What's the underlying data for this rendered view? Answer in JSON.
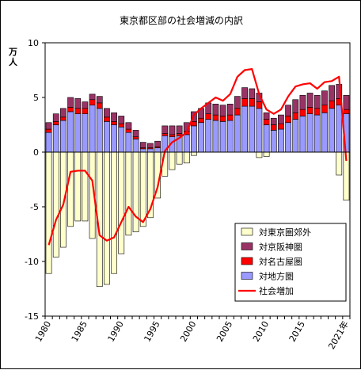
{
  "chart_data": {
    "type": "bar",
    "title": "東京都区部の社会増減の内訳",
    "ylabel": "万人",
    "ylim": [
      -15,
      10
    ],
    "yticks": [
      10,
      5,
      0,
      -5,
      -10,
      -15
    ],
    "x": [
      1980,
      1981,
      1982,
      1983,
      1984,
      1985,
      1986,
      1987,
      1988,
      1989,
      1990,
      1991,
      1992,
      1993,
      1994,
      1995,
      1996,
      1997,
      1998,
      1999,
      2000,
      2001,
      2002,
      2003,
      2004,
      2005,
      2006,
      2007,
      2008,
      2009,
      2010,
      2011,
      2012,
      2013,
      2014,
      2015,
      2016,
      2017,
      2018,
      2019,
      2020,
      2021
    ],
    "xtick_labels": [
      {
        "x": 1980,
        "label": "1980"
      },
      {
        "x": 1985,
        "label": "1985"
      },
      {
        "x": 1990,
        "label": "1990"
      },
      {
        "x": 1995,
        "label": "1995"
      },
      {
        "x": 2000,
        "label": "2000"
      },
      {
        "x": 2005,
        "label": "2005"
      },
      {
        "x": 2010,
        "label": "2010"
      },
      {
        "x": 2015,
        "label": "2015"
      },
      {
        "x": 2021,
        "label": "2021年"
      }
    ],
    "stacked": true,
    "series": [
      {
        "name": "対東京圏郊外",
        "color": "#ffffcc",
        "type": "bar",
        "values": [
          -11.1,
          -9.6,
          -8.7,
          -6.8,
          -6.3,
          -6.3,
          -7.9,
          -12.3,
          -12.1,
          -11.1,
          -9.3,
          -7.6,
          -7.3,
          -6.8,
          -6.0,
          -4.2,
          -2.2,
          -1.6,
          -1.1,
          -1.0,
          -0.3,
          0,
          0,
          0,
          0,
          0,
          0,
          0,
          0,
          -0.5,
          -0.4,
          0,
          0,
          0,
          0,
          0,
          0,
          0,
          0,
          0,
          -2.1,
          -4.4
        ]
      },
      {
        "name": "対地方圏",
        "color": "#9999ff",
        "type": "bar",
        "values": [
          1.8,
          2.5,
          2.9,
          3.7,
          3.5,
          3.5,
          4.3,
          4.0,
          2.8,
          2.5,
          2.3,
          1.8,
          1.2,
          0.3,
          0.3,
          0.4,
          1.5,
          1.4,
          1.5,
          1.6,
          2.4,
          2.7,
          3.0,
          2.9,
          2.8,
          2.9,
          3.4,
          4.2,
          4.2,
          4.0,
          2.5,
          2.0,
          2.1,
          2.7,
          3.0,
          3.3,
          3.5,
          3.4,
          3.6,
          4.0,
          4.3,
          3.5
        ]
      },
      {
        "name": "対名古屋圏",
        "color": "#ff0000",
        "type": "bar",
        "values": [
          0.3,
          0.3,
          0.3,
          0.4,
          0.5,
          0.5,
          0.5,
          0.5,
          0.4,
          0.3,
          0.3,
          0.3,
          0.2,
          0.1,
          0.1,
          0.1,
          0.2,
          0.2,
          0.2,
          0.3,
          0.4,
          0.4,
          0.5,
          0.5,
          0.5,
          0.5,
          0.6,
          0.7,
          0.7,
          0.6,
          0.5,
          0.5,
          0.5,
          0.6,
          0.6,
          0.6,
          0.6,
          0.6,
          0.7,
          0.7,
          0.6,
          0.4
        ]
      },
      {
        "name": "対京阪神圏",
        "color": "#993366",
        "type": "bar",
        "values": [
          0.6,
          0.7,
          0.8,
          0.9,
          0.9,
          0.6,
          0.5,
          0.6,
          0.8,
          0.8,
          0.7,
          0.6,
          0.6,
          0.5,
          0.4,
          0.5,
          0.7,
          0.8,
          0.7,
          0.8,
          0.9,
          0.9,
          1.0,
          1.0,
          1.0,
          1.0,
          1.1,
          1.0,
          0.9,
          0.8,
          0.6,
          0.6,
          0.8,
          1.0,
          1.2,
          1.3,
          1.3,
          1.2,
          1.3,
          1.4,
          1.3,
          1.3
        ]
      },
      {
        "name": "社会増加",
        "color": "#ff0000",
        "type": "line",
        "values": [
          -8.5,
          -6.2,
          -4.8,
          -1.8,
          -1.7,
          -1.7,
          -2.6,
          -7.6,
          -8.1,
          -7.8,
          -6.4,
          -5.0,
          -5.9,
          -6.4,
          -5.2,
          -3.2,
          0.1,
          0.9,
          1.3,
          1.8,
          3.4,
          4.0,
          4.5,
          5.0,
          4.7,
          5.3,
          6.9,
          7.5,
          7.6,
          5.3,
          3.9,
          3.5,
          3.9,
          5.1,
          6.0,
          6.2,
          6.3,
          5.8,
          6.4,
          6.5,
          6.9,
          -0.8
        ]
      }
    ],
    "legend_position": "bottom-right",
    "grid": false
  }
}
